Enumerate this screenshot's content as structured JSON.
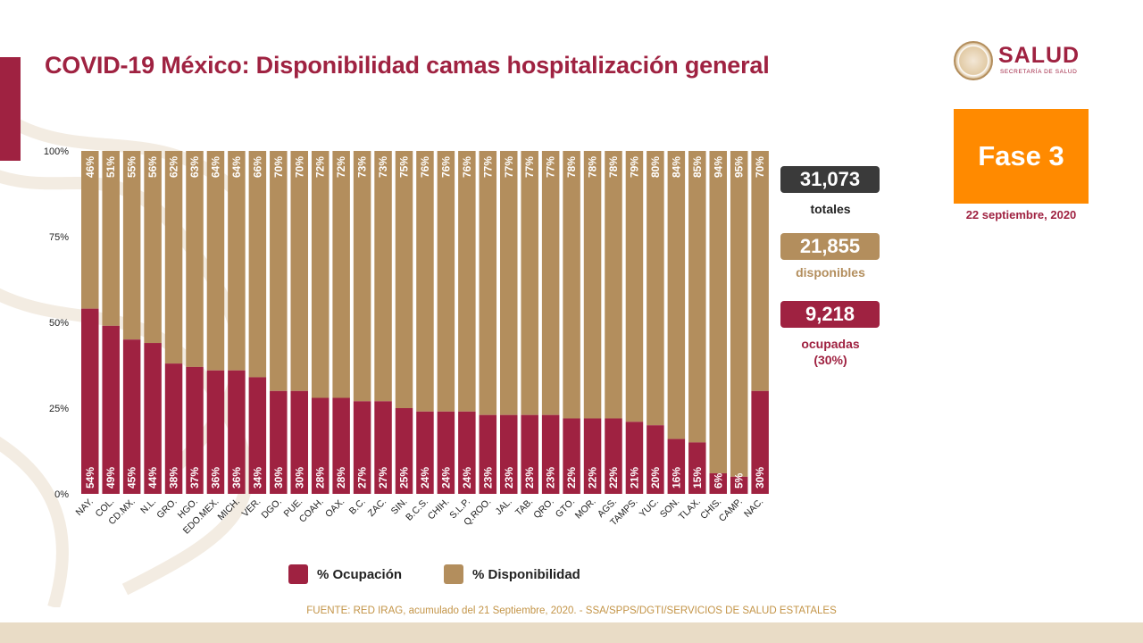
{
  "title": "COVID-19 México: Disponibilidad camas hospitalización general",
  "logo": {
    "name": "SALUD",
    "subtitle": "SECRETARÍA DE SALUD"
  },
  "phase": {
    "label": "Fase 3",
    "date": "22 septiembre, 2020"
  },
  "stats": {
    "total": {
      "value": "31,073",
      "label": "totales"
    },
    "available": {
      "value": "21,855",
      "label": "disponibles"
    },
    "occupied": {
      "value": "9,218",
      "label": "ocupadas",
      "percent": "(30%)"
    }
  },
  "colors": {
    "ocupacion": "#9f2241",
    "disponibilidad": "#b38e5d",
    "totals": "#3a3a3a",
    "phase": "#ff8a00"
  },
  "source": "FUENTE: RED IRAG, acumulado del 21 Septiembre, 2020. -   SSA/SPPS/DGTI/SERVICIOS DE SALUD ESTATALES",
  "chart_data": {
    "type": "bar",
    "stacked": true,
    "percent_stacked": true,
    "categories": [
      "NAY.",
      "COL.",
      "CD.MX.",
      "N.L.",
      "GRO.",
      "HGO.",
      "EDO.MEX.",
      "MICH.",
      "VER.",
      "DGO.",
      "PUE.",
      "COAH.",
      "OAX.",
      "B.C.",
      "ZAC.",
      "SIN.",
      "B.C.S.",
      "CHIH.",
      "S.L.P.",
      "Q.ROO.",
      "JAL.",
      "TAB.",
      "QRO.",
      "GTO.",
      "MOR.",
      "AGS.",
      "TAMPS.",
      "YUC.",
      "SON.",
      "TLAX.",
      "CHIS.",
      "CAMP.",
      "NAC."
    ],
    "series": [
      {
        "name": "% Ocupación",
        "color": "#9f2241",
        "values": [
          54,
          49,
          45,
          44,
          38,
          37,
          36,
          36,
          34,
          30,
          30,
          28,
          28,
          27,
          27,
          25,
          24,
          24,
          24,
          23,
          23,
          23,
          23,
          22,
          22,
          22,
          21,
          20,
          16,
          15,
          6,
          5,
          30
        ]
      },
      {
        "name": "% Disponibilidad",
        "color": "#b38e5d",
        "values": [
          46,
          51,
          55,
          56,
          62,
          63,
          64,
          64,
          66,
          70,
          70,
          72,
          72,
          73,
          73,
          75,
          76,
          76,
          76,
          77,
          77,
          77,
          77,
          78,
          78,
          78,
          79,
          80,
          84,
          85,
          94,
          95,
          70
        ]
      }
    ],
    "yticks": [
      "0%",
      "25%",
      "50%",
      "75%",
      "100%"
    ],
    "ylim": [
      0,
      100
    ],
    "legend": "bottom"
  }
}
